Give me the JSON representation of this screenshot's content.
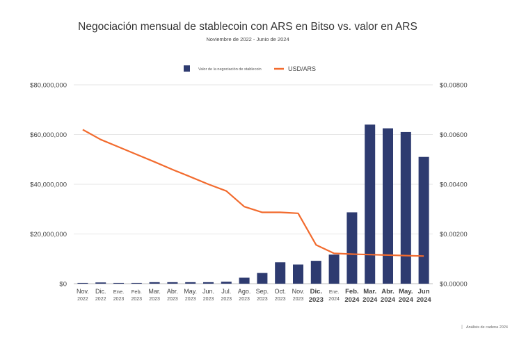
{
  "chart_data": {
    "type": "bar",
    "title": "Negociación mensual de stablecoin con ARS en Bitso vs. valor en ARS",
    "subtitle": "Noviembre de 2022 - Junio de 2024",
    "categories": [
      {
        "month": "Nov.",
        "year": "2022"
      },
      {
        "month": "Dic.",
        "year": "2022"
      },
      {
        "month": "Ene.",
        "year": "2023"
      },
      {
        "month": "Feb.",
        "year": "2023"
      },
      {
        "month": "Mar.",
        "year": "2023"
      },
      {
        "month": "Abr.",
        "year": "2023"
      },
      {
        "month": "May.",
        "year": "2023"
      },
      {
        "month": "Jun.",
        "year": "2023"
      },
      {
        "month": "Jul.",
        "year": "2023"
      },
      {
        "month": "Ago.",
        "year": "2023"
      },
      {
        "month": "Sep.",
        "year": "2023"
      },
      {
        "month": "Oct.",
        "year": "2023"
      },
      {
        "month": "Nov.",
        "year": "2023"
      },
      {
        "month": "Dic.",
        "year": "2023"
      },
      {
        "month": "Ene.",
        "year": "2024"
      },
      {
        "month": "Feb.",
        "year": "2024"
      },
      {
        "month": "Mar.",
        "year": "2024"
      },
      {
        "month": "Abr.",
        "year": "2024"
      },
      {
        "month": "May.",
        "year": "2024"
      },
      {
        "month": "Jun",
        "year": "2024"
      }
    ],
    "series": [
      {
        "name": "Valor de la negociación de stablecoin",
        "type": "bar",
        "axis": "left",
        "color": "#2e3b70",
        "values": [
          300000,
          500000,
          300000,
          300000,
          600000,
          600000,
          600000,
          600000,
          800000,
          2400000,
          4300000,
          8600000,
          7700000,
          9200000,
          11700000,
          28700000,
          64000000,
          62500000,
          61000000,
          51000000
        ]
      },
      {
        "name": "USD/ARS",
        "type": "line",
        "axis": "right",
        "color": "#f26b2e",
        "values": [
          0.0062,
          0.0058,
          0.0055,
          0.0052,
          0.0049,
          0.00459,
          0.0043,
          0.004,
          0.00373,
          0.0031,
          0.00287,
          0.00287,
          0.00283,
          0.00156,
          0.00122,
          0.00119,
          0.00117,
          0.00115,
          0.00113,
          0.00111
        ]
      }
    ],
    "y_left": {
      "range": [
        0,
        80000000
      ],
      "ticks": [
        0,
        20000000,
        40000000,
        60000000,
        80000000
      ],
      "tick_labels": [
        "$0",
        "$20,000,000",
        "$40,000,000",
        "$60,000,000",
        "$80,000,000"
      ]
    },
    "y_right": {
      "range": [
        0,
        0.008
      ],
      "ticks": [
        0,
        0.002,
        0.004,
        0.006,
        0.008
      ],
      "tick_labels": [
        "$0.00000",
        "$0.00200",
        "$0.00400",
        "$0.00600",
        "$0.00800"
      ]
    },
    "grid": true,
    "legend": "top-center",
    "footer": "Análisis de cadena 2024"
  }
}
